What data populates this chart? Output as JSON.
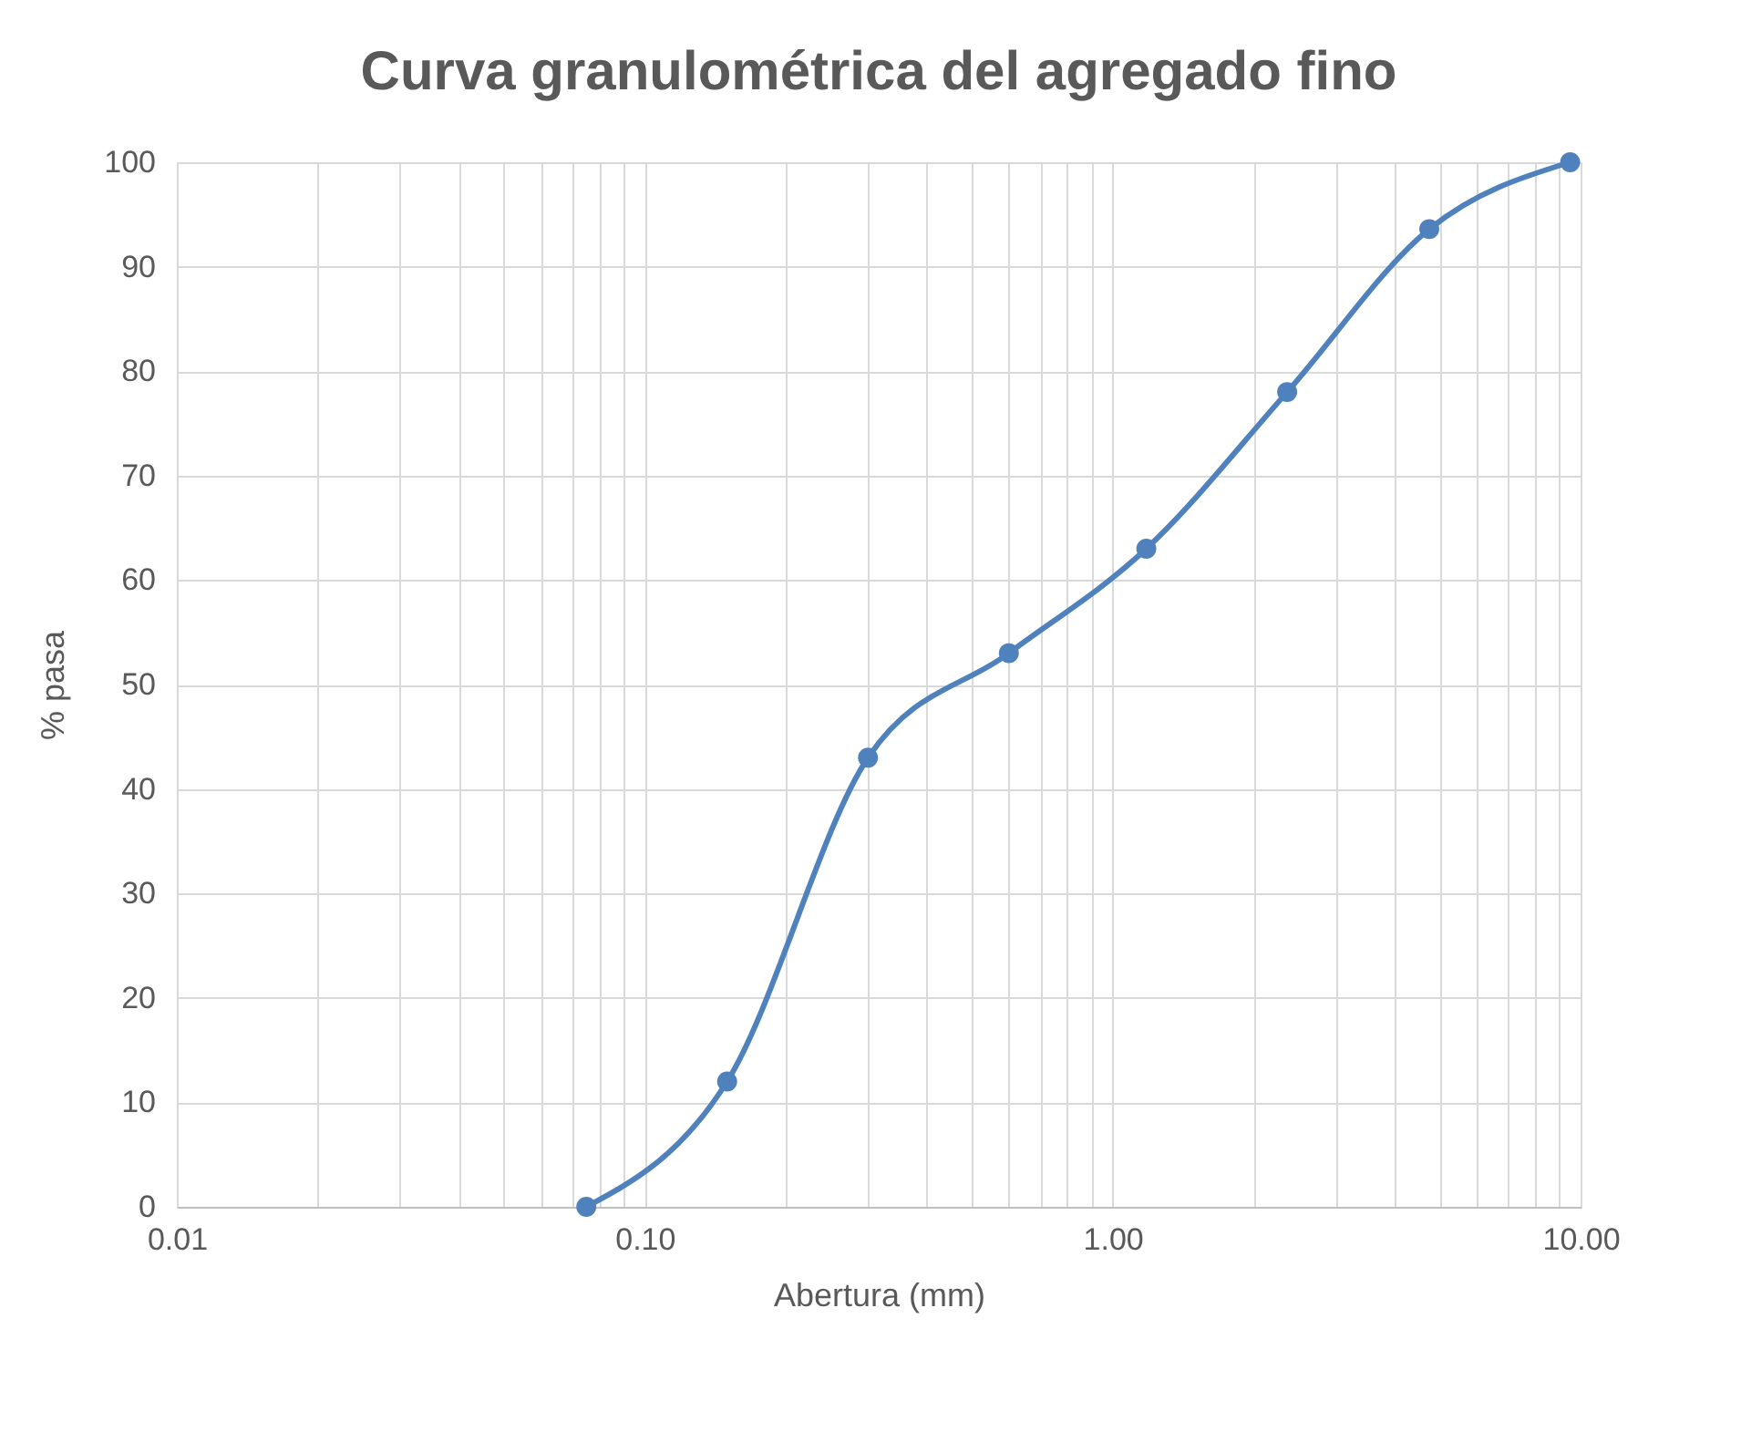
{
  "chart_data": {
    "type": "line",
    "title": "Curva granulométrica del agregado fino",
    "xlabel": "Abertura  (mm)",
    "ylabel": "% pasa",
    "x": [
      0.075,
      0.15,
      0.3,
      0.6,
      1.18,
      2.36,
      4.75,
      9.5
    ],
    "series": [
      {
        "color": "#4f81bd",
        "values": [
          0,
          12,
          43,
          53,
          63,
          78,
          93.6,
          100
        ]
      }
    ],
    "log": "x",
    "marker": "circle",
    "line_style": "solid",
    "grid": true,
    "legend": false,
    "xlim": [
      0.01,
      10
    ],
    "ylim": [
      0,
      100
    ],
    "xticks": [
      {
        "value": 0.01,
        "label": "0.01"
      },
      {
        "value": 0.02,
        "label": null
      },
      {
        "value": 0.03,
        "label": null
      },
      {
        "value": 0.04,
        "label": null
      },
      {
        "value": 0.05,
        "label": null
      },
      {
        "value": 0.06,
        "label": null
      },
      {
        "value": 0.07,
        "label": null
      },
      {
        "value": 0.08,
        "label": null
      },
      {
        "value": 0.09,
        "label": null
      },
      {
        "value": 0.1,
        "label": "0.10"
      },
      {
        "value": 0.2,
        "label": null
      },
      {
        "value": 0.3,
        "label": null
      },
      {
        "value": 0.4,
        "label": null
      },
      {
        "value": 0.5,
        "label": null
      },
      {
        "value": 0.6,
        "label": null
      },
      {
        "value": 0.7,
        "label": null
      },
      {
        "value": 0.8,
        "label": null
      },
      {
        "value": 0.9,
        "label": null
      },
      {
        "value": 1,
        "label": "1.00"
      },
      {
        "value": 2,
        "label": null
      },
      {
        "value": 3,
        "label": null
      },
      {
        "value": 4,
        "label": null
      },
      {
        "value": 5,
        "label": null
      },
      {
        "value": 6,
        "label": null
      },
      {
        "value": 7,
        "label": null
      },
      {
        "value": 8,
        "label": null
      },
      {
        "value": 9,
        "label": null
      },
      {
        "value": 10,
        "label": "10.00"
      }
    ],
    "yticks": [
      0,
      10,
      20,
      30,
      40,
      50,
      60,
      70,
      80,
      90,
      100
    ]
  }
}
